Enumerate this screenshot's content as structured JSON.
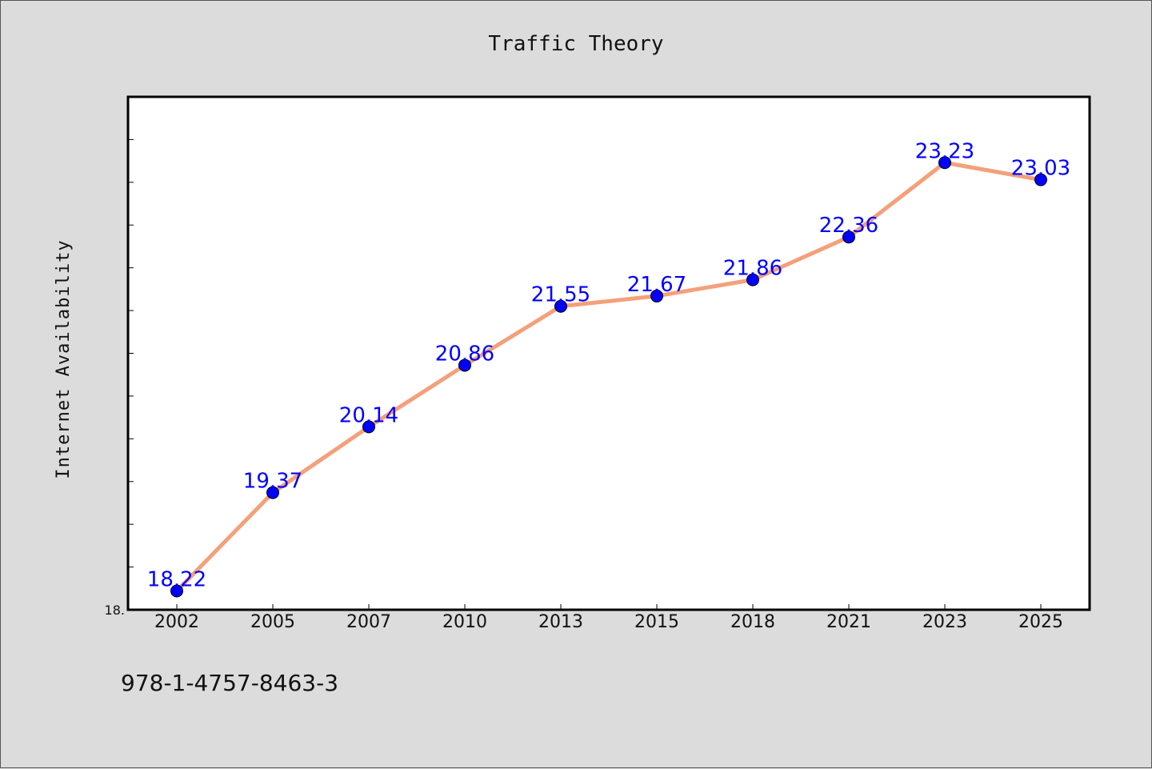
{
  "chart_data": {
    "type": "line",
    "title": "Traffic Theory",
    "ylabel": "Internet Availability",
    "xlabel": "",
    "categories": [
      "2002",
      "2005",
      "2007",
      "2010",
      "2013",
      "2015",
      "2018",
      "2021",
      "2023",
      "2025"
    ],
    "series": [
      {
        "values": [
          18.22,
          19.37,
          20.14,
          20.86,
          21.55,
          21.67,
          21.86,
          22.36,
          23.23,
          23.03
        ],
        "data_labels": [
          "18.22",
          "19.37",
          "20.14",
          "20.86",
          "21.55",
          "21.67",
          "21.86",
          "22.36",
          "23.23",
          "23.03"
        ],
        "line_color": "#f4a07a",
        "marker_color": "#0000ff"
      }
    ],
    "ylim": [
      18.0,
      24.0
    ],
    "ytick_labels": [
      {
        "value": 18.0,
        "label": "18."
      }
    ],
    "grid": false,
    "legend": "none"
  },
  "footer": {
    "isbn": "978-1-4757-8463-3"
  },
  "colors": {
    "background": "#dcdcdc",
    "plot_background": "#ffffff",
    "line": "#f4a07a",
    "marker": "#0000ff",
    "data_label": "#0000ff"
  }
}
